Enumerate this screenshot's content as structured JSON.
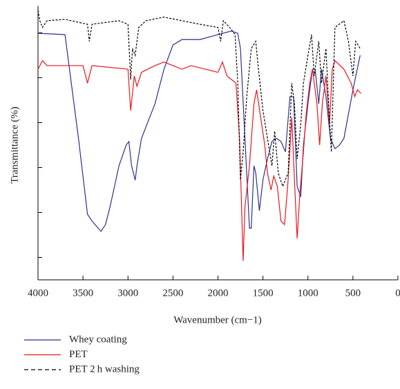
{
  "chart_data": {
    "type": "line",
    "xlabel": "Wavenumber (cm−1)",
    "ylabel": "Transmittance (%)",
    "xlim": [
      4000,
      0
    ],
    "xticks": [
      4000,
      3500,
      3000,
      2500,
      2000,
      1500,
      1000,
      500,
      0
    ],
    "ylim": [
      0,
      61
    ],
    "yticks": [
      5,
      15,
      25,
      35,
      45,
      55
    ],
    "ytick_labels_shown": false,
    "legend": "bottom",
    "series": [
      {
        "name": "Whey coating",
        "color": "#2b2f8a",
        "dash": false,
        "x": [
          4000,
          3700,
          3550,
          3450,
          3400,
          3300,
          3250,
          3200,
          3100,
          3020,
          2990,
          2960,
          2920,
          2900,
          2850,
          2700,
          2600,
          2500,
          2400,
          2200,
          2000,
          1850,
          1780,
          1750,
          1700,
          1650,
          1630,
          1600,
          1580,
          1540,
          1500,
          1450,
          1400,
          1350,
          1300,
          1250,
          1200,
          1160,
          1120,
          1080,
          1050,
          1000,
          950,
          920,
          880,
          850,
          800,
          750,
          700,
          650,
          600,
          550,
          500,
          420
        ],
        "values": [
          54.9,
          54.6,
          31.5,
          14.6,
          13.1,
          10.8,
          12.3,
          16.2,
          25.4,
          30.0,
          30.8,
          25.4,
          22.2,
          25.4,
          31.5,
          39.2,
          46.9,
          52.3,
          53.5,
          53.5,
          54.6,
          55.4,
          54.9,
          51.5,
          31.5,
          11.5,
          11.5,
          25.4,
          23.8,
          15.4,
          22.3,
          26.9,
          30.8,
          31.5,
          30.8,
          28.5,
          40.8,
          40.8,
          20.8,
          18.5,
          30.0,
          39.2,
          46.9,
          46.9,
          39.2,
          46.9,
          40.8,
          31.5,
          29.2,
          30.0,
          31.5,
          36.9,
          42.3,
          50.0
        ]
      },
      {
        "name": "PET",
        "color": "#e8141c",
        "dash": false,
        "x": [
          4000,
          3950,
          3900,
          3500,
          3450,
          3400,
          3000,
          2970,
          2930,
          2900,
          2850,
          2700,
          2600,
          2400,
          2300,
          2000,
          1950,
          1900,
          1800,
          1760,
          1720,
          1700,
          1650,
          1600,
          1570,
          1520,
          1480,
          1450,
          1410,
          1380,
          1340,
          1300,
          1260,
          1220,
          1180,
          1150,
          1120,
          1090,
          1050,
          1020,
          980,
          950,
          900,
          870,
          840,
          800,
          760,
          730,
          700,
          600,
          520,
          480,
          450,
          410
        ],
        "values": [
          46.9,
          48.8,
          47.7,
          47.7,
          43.8,
          47.7,
          46.9,
          37.7,
          45.4,
          43.1,
          46.2,
          47.7,
          48.5,
          46.9,
          47.7,
          46.2,
          48.5,
          45.4,
          43.8,
          31.5,
          4.2,
          16.2,
          25.4,
          39.2,
          42.3,
          35.4,
          30.0,
          23.8,
          20.0,
          23.1,
          20.8,
          13.1,
          12.3,
          22.3,
          36.2,
          22.3,
          9.2,
          19.2,
          28.5,
          36.9,
          43.8,
          46.9,
          39.2,
          30.0,
          39.2,
          45.4,
          34.6,
          46.9,
          48.8,
          46.9,
          43.8,
          40.8,
          42.3,
          41.5
        ]
      },
      {
        "name": "PET 2 h washing",
        "color": "#000000",
        "dash": true,
        "x": [
          4000,
          3980,
          3950,
          3900,
          3700,
          3450,
          3430,
          3400,
          3100,
          3000,
          2970,
          2950,
          2920,
          2880,
          2800,
          2600,
          2400,
          2200,
          2000,
          1970,
          1940,
          1870,
          1810,
          1780,
          1750,
          1720,
          1680,
          1630,
          1580,
          1550,
          1500,
          1450,
          1400,
          1370,
          1330,
          1280,
          1220,
          1180,
          1150,
          1120,
          1080,
          1050,
          1000,
          960,
          930,
          880,
          850,
          800,
          770,
          740,
          700,
          600,
          550,
          500,
          470,
          420
        ],
        "values": [
          60.0,
          57.7,
          56.2,
          57.7,
          58.0,
          56.9,
          53.1,
          56.9,
          57.7,
          56.9,
          44.6,
          51.5,
          50.0,
          56.2,
          57.7,
          58.5,
          57.7,
          56.9,
          56.2,
          53.1,
          57.7,
          56.2,
          54.6,
          43.8,
          22.3,
          28.5,
          40.8,
          51.5,
          53.1,
          46.9,
          37.7,
          31.5,
          25.4,
          33.1,
          23.8,
          20.8,
          23.8,
          43.8,
          39.2,
          26.9,
          34.6,
          43.8,
          50.0,
          54.6,
          45.4,
          53.1,
          43.8,
          51.5,
          39.2,
          28.5,
          56.2,
          57.7,
          53.1,
          45.4,
          53.1,
          51.5
        ]
      }
    ]
  }
}
